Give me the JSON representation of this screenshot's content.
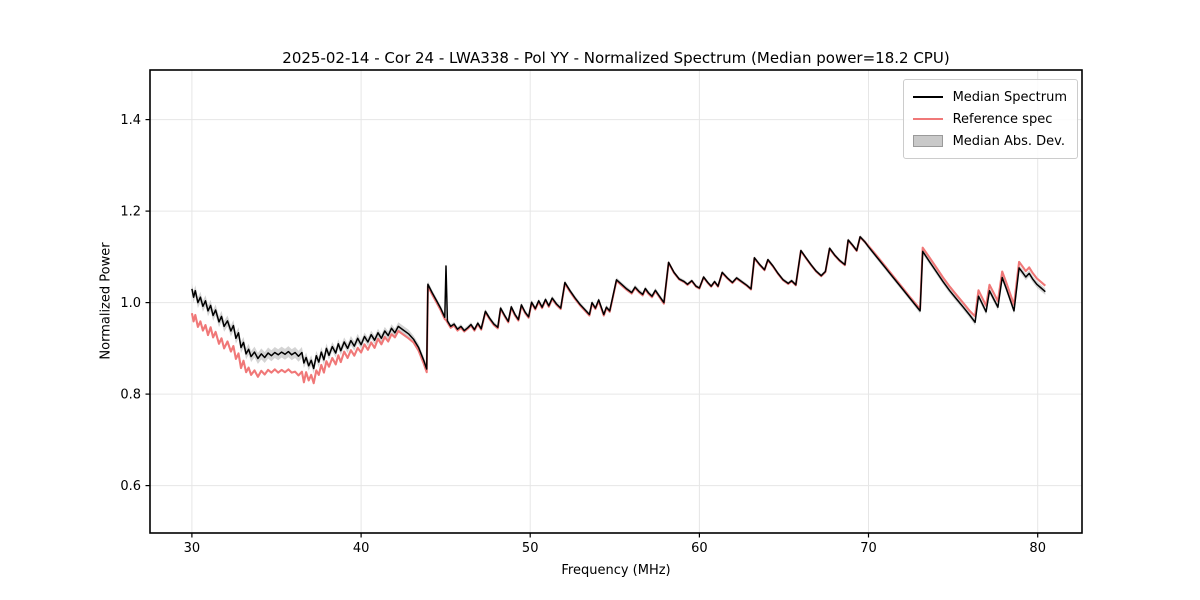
{
  "chart_data": {
    "type": "line",
    "title": "2025-02-14 - Cor 24 - LWA338 - Pol YY - Normalized Spectrum (Median power=18.2 CPU)",
    "xlabel": "Frequency (MHz)",
    "ylabel": "Normalized Power",
    "xlim": [
      27.52,
      82.62
    ],
    "ylim": [
      0.4965,
      1.5085
    ],
    "xticks": [
      30,
      40,
      50,
      60,
      70,
      80
    ],
    "yticks": [
      0.6,
      0.8,
      1.0,
      1.2,
      1.4
    ],
    "grid": true,
    "colors": {
      "median": "#000000",
      "reference": "#f07878",
      "mad_band": "#c9c9c9",
      "grid": "#e6e6e6",
      "spine": "#000000"
    },
    "legend": {
      "position": "upper right",
      "entries": [
        {
          "label": "Median Spectrum",
          "color": "#000000",
          "type": "line"
        },
        {
          "label": "Reference spec",
          "color": "#f07878",
          "type": "line"
        },
        {
          "label": "Median Abs. Dev.",
          "color": "#c9c9c9",
          "type": "band"
        }
      ]
    },
    "series_columns": [
      "frequency_mhz",
      "median_spectrum",
      "reference_spec",
      "median_abs_dev"
    ],
    "points": [
      [
        30,
        1.03,
        0.977,
        0.012
      ],
      [
        30.1,
        1.012,
        0.959,
        0.012
      ],
      [
        30.2,
        1.026,
        0.973,
        0.012
      ],
      [
        30.35,
        1,
        0.947,
        0.012
      ],
      [
        30.5,
        1.012,
        0.959,
        0.012
      ],
      [
        30.65,
        0.992,
        0.939,
        0.012
      ],
      [
        30.8,
        1.004,
        0.951,
        0.012
      ],
      [
        30.95,
        0.982,
        0.929,
        0.012
      ],
      [
        31.1,
        0.994,
        0.946,
        0.012
      ],
      [
        31.25,
        0.972,
        0.924,
        0.012
      ],
      [
        31.4,
        0.984,
        0.936,
        0.012
      ],
      [
        31.6,
        0.958,
        0.91,
        0.012
      ],
      [
        31.75,
        0.97,
        0.922,
        0.012
      ],
      [
        31.9,
        0.948,
        0.9,
        0.012
      ],
      [
        32.1,
        0.96,
        0.915,
        0.012
      ],
      [
        32.3,
        0.938,
        0.893,
        0.012
      ],
      [
        32.45,
        0.95,
        0.905,
        0.012
      ],
      [
        32.6,
        0.922,
        0.877,
        0.012
      ],
      [
        32.75,
        0.934,
        0.889,
        0.012
      ],
      [
        32.9,
        0.902,
        0.857,
        0.012
      ],
      [
        33.05,
        0.913,
        0.873,
        0.012
      ],
      [
        33.2,
        0.888,
        0.848,
        0.012
      ],
      [
        33.35,
        0.898,
        0.858,
        0.012
      ],
      [
        33.5,
        0.882,
        0.842,
        0.012
      ],
      [
        33.7,
        0.892,
        0.852,
        0.012
      ],
      [
        33.9,
        0.878,
        0.838,
        0.012
      ],
      [
        34.1,
        0.888,
        0.851,
        0.012
      ],
      [
        34.3,
        0.88,
        0.843,
        0.012
      ],
      [
        34.5,
        0.89,
        0.853,
        0.012
      ],
      [
        34.7,
        0.884,
        0.847,
        0.012
      ],
      [
        34.9,
        0.891,
        0.854,
        0.012
      ],
      [
        35.1,
        0.886,
        0.847,
        0.012
      ],
      [
        35.3,
        0.892,
        0.853,
        0.012
      ],
      [
        35.5,
        0.887,
        0.848,
        0.012
      ],
      [
        35.7,
        0.893,
        0.854,
        0.012
      ],
      [
        35.9,
        0.886,
        0.847,
        0.012
      ],
      [
        36.1,
        0.891,
        0.849,
        0.012
      ],
      [
        36.3,
        0.883,
        0.841,
        0.012
      ],
      [
        36.5,
        0.891,
        0.849,
        0.012
      ],
      [
        36.62,
        0.868,
        0.826,
        0.011
      ],
      [
        36.75,
        0.88,
        0.848,
        0.011
      ],
      [
        36.9,
        0.862,
        0.83,
        0.011
      ],
      [
        37.05,
        0.874,
        0.842,
        0.011
      ],
      [
        37.2,
        0.856,
        0.824,
        0.011
      ],
      [
        37.35,
        0.884,
        0.852,
        0.011
      ],
      [
        37.5,
        0.87,
        0.842,
        0.011
      ],
      [
        37.65,
        0.892,
        0.864,
        0.011
      ],
      [
        37.8,
        0.875,
        0.847,
        0.011
      ],
      [
        37.95,
        0.9,
        0.872,
        0.011
      ],
      [
        38.1,
        0.885,
        0.86,
        0.01
      ],
      [
        38.3,
        0.904,
        0.879,
        0.01
      ],
      [
        38.5,
        0.89,
        0.865,
        0.01
      ],
      [
        38.65,
        0.91,
        0.885,
        0.01
      ],
      [
        38.8,
        0.895,
        0.87,
        0.01
      ],
      [
        39,
        0.914,
        0.893,
        0.01
      ],
      [
        39.2,
        0.9,
        0.879,
        0.01
      ],
      [
        39.4,
        0.917,
        0.896,
        0.01
      ],
      [
        39.6,
        0.905,
        0.884,
        0.01
      ],
      [
        39.8,
        0.922,
        0.901,
        0.01
      ],
      [
        40,
        0.908,
        0.891,
        0.009
      ],
      [
        40.2,
        0.926,
        0.909,
        0.009
      ],
      [
        40.4,
        0.914,
        0.897,
        0.009
      ],
      [
        40.6,
        0.93,
        0.913,
        0.009
      ],
      [
        40.8,
        0.918,
        0.901,
        0.009
      ],
      [
        41,
        0.934,
        0.921,
        0.009
      ],
      [
        41.2,
        0.922,
        0.909,
        0.009
      ],
      [
        41.4,
        0.938,
        0.925,
        0.009
      ],
      [
        41.6,
        0.928,
        0.915,
        0.009
      ],
      [
        41.8,
        0.944,
        0.931,
        0.009
      ],
      [
        42,
        0.934,
        0.924,
        0.009
      ],
      [
        42.2,
        0.948,
        0.938,
        0.009
      ],
      [
        42.5,
        0.94,
        0.93,
        0.009
      ],
      [
        42.8,
        0.932,
        0.922,
        0.009
      ],
      [
        43.1,
        0.92,
        0.913,
        0.008
      ],
      [
        43.4,
        0.902,
        0.895,
        0.008
      ],
      [
        43.7,
        0.874,
        0.867,
        0.008
      ],
      [
        43.88,
        0.855,
        0.848,
        0.008
      ],
      [
        43.95,
        1.04,
        1.036,
        0.007
      ],
      [
        44.2,
        1.022,
        1.018,
        0.006
      ],
      [
        44.45,
        1.005,
        1.001,
        0.006
      ],
      [
        44.7,
        0.988,
        0.984,
        0.006
      ],
      [
        44.95,
        0.968,
        0.964,
        0.006
      ],
      [
        45.02,
        1.08,
        0.962,
        0.006
      ],
      [
        45.1,
        0.96,
        0.957,
        0.006
      ],
      [
        45.3,
        0.948,
        0.945,
        0.005
      ],
      [
        45.5,
        0.953,
        0.95,
        0.005
      ],
      [
        45.7,
        0.942,
        0.939,
        0.005
      ],
      [
        45.9,
        0.948,
        0.945,
        0.005
      ],
      [
        46.1,
        0.939,
        0.937,
        0.005
      ],
      [
        46.3,
        0.945,
        0.943,
        0.005
      ],
      [
        46.5,
        0.952,
        0.95,
        0.005
      ],
      [
        46.7,
        0.941,
        0.939,
        0.005
      ],
      [
        46.9,
        0.955,
        0.953,
        0.005
      ],
      [
        47.1,
        0.943,
        0.941,
        0.005
      ],
      [
        47.35,
        0.981,
        0.979,
        0.005
      ],
      [
        47.6,
        0.966,
        0.964,
        0.005
      ],
      [
        47.85,
        0.953,
        0.951,
        0.005
      ],
      [
        48.08,
        0.946,
        0.944,
        0.005
      ],
      [
        48.25,
        0.988,
        0.986,
        0.005
      ],
      [
        48.5,
        0.971,
        0.969,
        0.005
      ],
      [
        48.7,
        0.959,
        0.957,
        0.005
      ],
      [
        48.88,
        0.991,
        0.989,
        0.005
      ],
      [
        49.1,
        0.974,
        0.972,
        0.005
      ],
      [
        49.3,
        0.963,
        0.961,
        0.005
      ],
      [
        49.48,
        0.995,
        0.993,
        0.005
      ],
      [
        49.7,
        0.979,
        0.977,
        0.005
      ],
      [
        49.9,
        0.969,
        0.967,
        0.005
      ],
      [
        50.08,
        1.001,
        0.999,
        0.005
      ],
      [
        50.3,
        0.987,
        0.985,
        0.005
      ],
      [
        50.5,
        1.004,
        1.002,
        0.005
      ],
      [
        50.7,
        0.99,
        0.988,
        0.005
      ],
      [
        50.9,
        1.007,
        1.005,
        0.005
      ],
      [
        51.1,
        0.993,
        0.991,
        0.005
      ],
      [
        51.3,
        1.01,
        1.008,
        0.005
      ],
      [
        51.55,
        0.997,
        0.995,
        0.005
      ],
      [
        51.8,
        0.988,
        0.986,
        0.005
      ],
      [
        52.05,
        1.044,
        1.042,
        0.005
      ],
      [
        52.35,
        1.026,
        1.024,
        0.005
      ],
      [
        52.65,
        1.01,
        1.008,
        0.005
      ],
      [
        52.95,
        0.996,
        0.994,
        0.005
      ],
      [
        53.25,
        0.984,
        0.982,
        0.005
      ],
      [
        53.5,
        0.974,
        0.972,
        0.005
      ],
      [
        53.65,
        1,
        0.998,
        0.005
      ],
      [
        53.85,
        0.988,
        0.986,
        0.005
      ],
      [
        54.05,
        1.006,
        1.004,
        0.005
      ],
      [
        54.35,
        0.974,
        0.972,
        0.005
      ],
      [
        54.5,
        0.99,
        0.988,
        0.005
      ],
      [
        54.7,
        0.982,
        0.98,
        0.005
      ],
      [
        55.1,
        1.05,
        1.048,
        0.005
      ],
      [
        55.4,
        1.04,
        1.038,
        0.005
      ],
      [
        55.7,
        1.03,
        1.028,
        0.005
      ],
      [
        56,
        1.022,
        1.02,
        0.005
      ],
      [
        56.2,
        1.034,
        1.032,
        0.005
      ],
      [
        56.45,
        1.024,
        1.022,
        0.005
      ],
      [
        56.65,
        1.018,
        1.016,
        0.005
      ],
      [
        56.8,
        1.031,
        1.029,
        0.005
      ],
      [
        57,
        1.021,
        1.019,
        0.005
      ],
      [
        57.2,
        1.014,
        1.012,
        0.005
      ],
      [
        57.4,
        1.027,
        1.025,
        0.005
      ],
      [
        57.6,
        1.016,
        1.014,
        0.005
      ],
      [
        57.9,
        1,
        0.998,
        0.005
      ],
      [
        58.18,
        1.088,
        1.087,
        0.004
      ],
      [
        58.5,
        1.066,
        1.065,
        0.004
      ],
      [
        58.8,
        1.052,
        1.051,
        0.004
      ],
      [
        59.1,
        1.046,
        1.045,
        0.004
      ],
      [
        59.3,
        1.04,
        1.039,
        0.004
      ],
      [
        59.55,
        1.048,
        1.047,
        0.004
      ],
      [
        59.8,
        1.036,
        1.035,
        0.004
      ],
      [
        60,
        1.032,
        1.031,
        0.004
      ],
      [
        60.25,
        1.056,
        1.055,
        0.004
      ],
      [
        60.5,
        1.044,
        1.043,
        0.004
      ],
      [
        60.7,
        1.036,
        1.035,
        0.004
      ],
      [
        60.9,
        1.046,
        1.045,
        0.004
      ],
      [
        61.1,
        1.036,
        1.035,
        0.004
      ],
      [
        61.35,
        1.066,
        1.065,
        0.004
      ],
      [
        61.65,
        1.054,
        1.053,
        0.004
      ],
      [
        61.95,
        1.044,
        1.043,
        0.004
      ],
      [
        62.2,
        1.054,
        1.053,
        0.004
      ],
      [
        62.5,
        1.046,
        1.045,
        0.004
      ],
      [
        62.8,
        1.038,
        1.037,
        0.004
      ],
      [
        63.05,
        1.03,
        1.029,
        0.004
      ],
      [
        63.25,
        1.098,
        1.097,
        0.004
      ],
      [
        63.55,
        1.084,
        1.083,
        0.004
      ],
      [
        63.85,
        1.072,
        1.071,
        0.004
      ],
      [
        64.05,
        1.094,
        1.093,
        0.004
      ],
      [
        64.35,
        1.08,
        1.079,
        0.004
      ],
      [
        64.65,
        1.064,
        1.063,
        0.004
      ],
      [
        64.95,
        1.05,
        1.049,
        0.004
      ],
      [
        65.25,
        1.042,
        1.041,
        0.004
      ],
      [
        65.45,
        1.048,
        1.047,
        0.004
      ],
      [
        65.7,
        1.039,
        1.038,
        0.004
      ],
      [
        66,
        1.114,
        1.113,
        0.004
      ],
      [
        66.3,
        1.098,
        1.097,
        0.004
      ],
      [
        66.6,
        1.083,
        1.082,
        0.004
      ],
      [
        66.9,
        1.069,
        1.068,
        0.004
      ],
      [
        67.2,
        1.059,
        1.058,
        0.004
      ],
      [
        67.45,
        1.068,
        1.067,
        0.004
      ],
      [
        67.7,
        1.119,
        1.118,
        0.004
      ],
      [
        68,
        1.104,
        1.103,
        0.004
      ],
      [
        68.3,
        1.092,
        1.091,
        0.004
      ],
      [
        68.6,
        1.083,
        1.082,
        0.004
      ],
      [
        68.8,
        1.137,
        1.136,
        0.004
      ],
      [
        69.05,
        1.126,
        1.125,
        0.004
      ],
      [
        69.3,
        1.114,
        1.113,
        0.004
      ],
      [
        69.5,
        1.144,
        1.143,
        0.004
      ],
      [
        69.8,
        1.132,
        1.132,
        0.005
      ],
      [
        70,
        1.122,
        1.124,
        0.005
      ],
      [
        70.5,
        1.099,
        1.102,
        0.005
      ],
      [
        71,
        1.076,
        1.079,
        0.005
      ],
      [
        71.5,
        1.053,
        1.056,
        0.005
      ],
      [
        72,
        1.03,
        1.033,
        0.005
      ],
      [
        72.5,
        1.007,
        1.01,
        0.005
      ],
      [
        73.05,
        0.982,
        0.986,
        0.006
      ],
      [
        73.2,
        1.112,
        1.12,
        0.006
      ],
      [
        73.6,
        1.09,
        1.099,
        0.006
      ],
      [
        74,
        1.068,
        1.077,
        0.006
      ],
      [
        74.4,
        1.046,
        1.055,
        0.006
      ],
      [
        74.8,
        1.026,
        1.035,
        0.006
      ],
      [
        75.2,
        1.008,
        1.017,
        0.006
      ],
      [
        75.6,
        0.99,
        0.999,
        0.006
      ],
      [
        76,
        0.972,
        0.981,
        0.006
      ],
      [
        76.3,
        0.957,
        0.97,
        0.007
      ],
      [
        76.5,
        1.014,
        1.027,
        0.007
      ],
      [
        76.7,
        0.999,
        1.012,
        0.007
      ],
      [
        76.95,
        0.98,
        0.993,
        0.007
      ],
      [
        77.15,
        1.026,
        1.039,
        0.007
      ],
      [
        77.4,
        1.008,
        1.021,
        0.007
      ],
      [
        77.65,
        0.99,
        1.003,
        0.007
      ],
      [
        77.9,
        1.055,
        1.068,
        0.007
      ],
      [
        78.15,
        1.03,
        1.043,
        0.007
      ],
      [
        78.45,
        0.998,
        1.011,
        0.007
      ],
      [
        78.6,
        0.982,
        0.995,
        0.007
      ],
      [
        78.9,
        1.076,
        1.089,
        0.007
      ],
      [
        79.1,
        1.066,
        1.079,
        0.007
      ],
      [
        79.3,
        1.056,
        1.069,
        0.007
      ],
      [
        79.5,
        1.064,
        1.077,
        0.007
      ],
      [
        79.7,
        1.052,
        1.065,
        0.007
      ],
      [
        79.95,
        1.04,
        1.053,
        0.007
      ],
      [
        80.2,
        1.032,
        1.045,
        0.007
      ],
      [
        80.45,
        1.024,
        1.037,
        0.007
      ]
    ]
  }
}
